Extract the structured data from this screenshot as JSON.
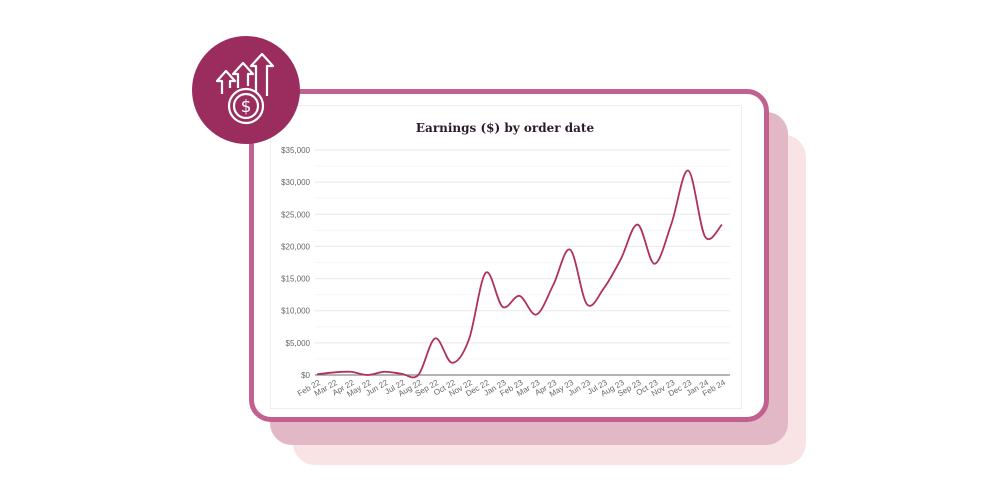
{
  "colors": {
    "line": "#b0305f",
    "badge": "#9b2d5e",
    "frame": "#c2608f"
  },
  "badge_icon": "money-growth-arrows-icon",
  "chart_data": {
    "type": "line",
    "title": "Earnings ($) by order date",
    "xlabel": "",
    "ylabel": "",
    "categories": [
      "Feb 22",
      "Mar 22",
      "Apr 22",
      "May 22",
      "Jun 22",
      "Jul 22",
      "Aug 22",
      "Sep 22",
      "Oct 22",
      "Nov 22",
      "Dec 22",
      "Jan 23",
      "Feb 23",
      "Mar 23",
      "Apr 23",
      "May 23",
      "Jun 23",
      "Jul 23",
      "Aug 23",
      "Sep 23",
      "Oct 23",
      "Nov 23",
      "Dec 23",
      "Jan 24",
      "Feb 24"
    ],
    "values": [
      100,
      400,
      500,
      0,
      500,
      200,
      0,
      5700,
      1900,
      5500,
      15900,
      10600,
      12300,
      9400,
      14000,
      19500,
      11000,
      13500,
      18000,
      23400,
      17300,
      23500,
      31800,
      21500,
      23400
    ],
    "ylim": [
      0,
      35000
    ],
    "yticks": [
      "$0",
      "$5,000",
      "$10,000",
      "$15,000",
      "$20,000",
      "$25,000",
      "$30,000",
      "$35,000"
    ],
    "grid": true,
    "smooth": true
  }
}
